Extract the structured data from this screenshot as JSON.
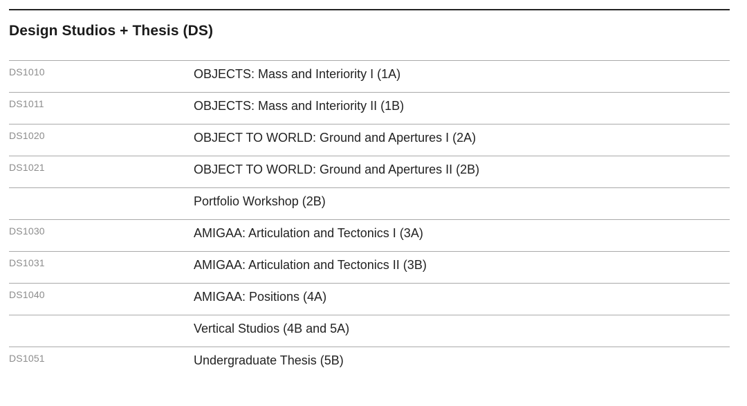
{
  "section": {
    "title": "Design Studios + Thesis (DS)"
  },
  "courses": [
    {
      "code": "DS1010",
      "name": "OBJECTS: Mass and Interiority I (1A)"
    },
    {
      "code": "DS1011",
      "name": "OBJECTS: Mass and Interiority II (1B)"
    },
    {
      "code": "DS1020",
      "name": "OBJECT TO WORLD: Ground and Apertures I (2A)"
    },
    {
      "code": "DS1021",
      "name": "OBJECT TO WORLD: Ground and Apertures II (2B)"
    },
    {
      "code": "",
      "name": "Portfolio Workshop (2B)"
    },
    {
      "code": "DS1030",
      "name": "AMIGAA: Articulation and Tectonics I (3A)"
    },
    {
      "code": "DS1031",
      "name": "AMIGAA: Articulation and Tectonics II (3B)"
    },
    {
      "code": "DS1040",
      "name": "AMIGAA: Positions (4A)"
    },
    {
      "code": "",
      "name": "Vertical Studios (4B and 5A)"
    },
    {
      "code": "DS1051",
      "name": "Undergraduate Thesis (5B)"
    }
  ]
}
